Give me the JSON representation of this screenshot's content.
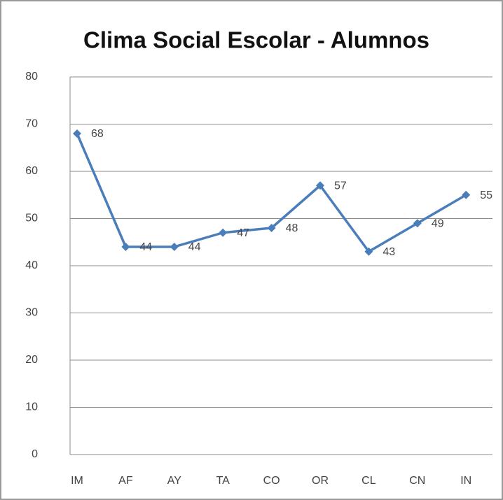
{
  "chart_data": {
    "type": "line",
    "title": "Clima Social Escolar - Alumnos",
    "categories": [
      "IM",
      "AF",
      "AY",
      "TA",
      "CO",
      "OR",
      "CL",
      "CN",
      "IN"
    ],
    "values": [
      68,
      44,
      44,
      47,
      48,
      57,
      43,
      49,
      55
    ],
    "color": "#4a7ebb",
    "ylim": [
      0,
      80
    ],
    "yticks": [
      0,
      10,
      20,
      30,
      40,
      50,
      60,
      70,
      80
    ],
    "grid": true
  }
}
